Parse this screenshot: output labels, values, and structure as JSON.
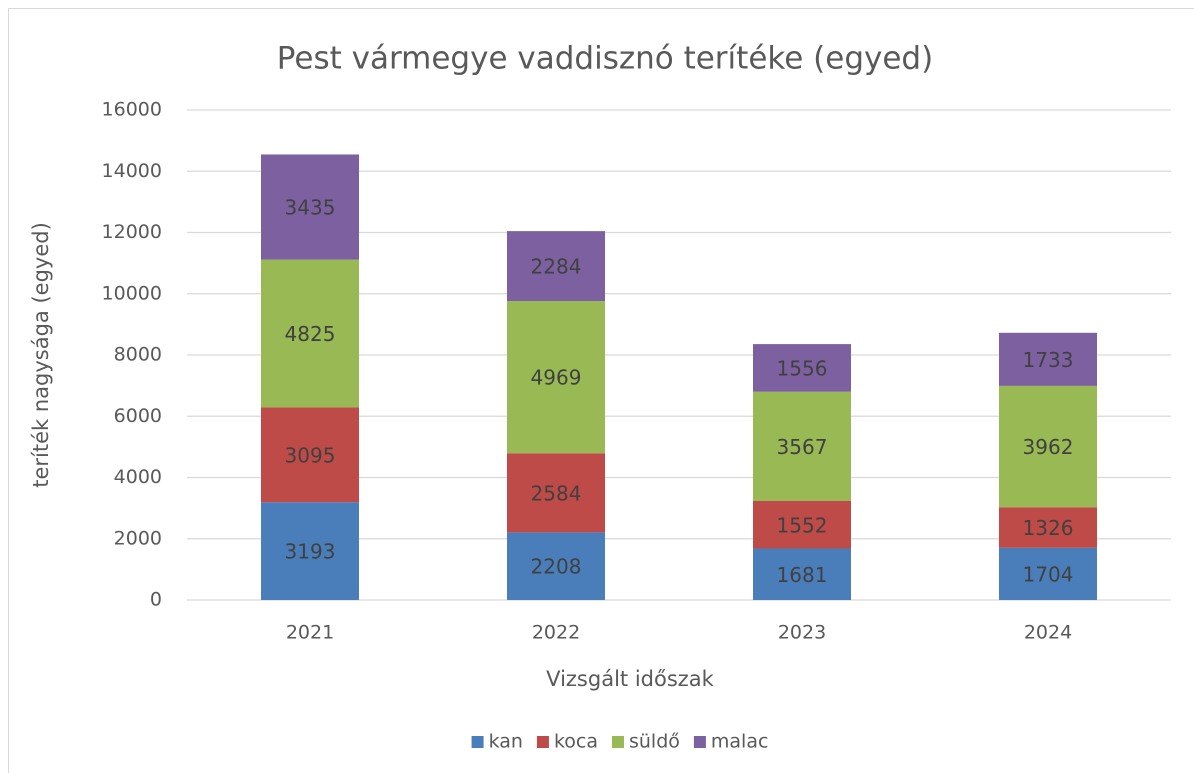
{
  "chart_data": {
    "type": "bar",
    "stacked": true,
    "title": "Pest vármegye vaddisznó terítéke (egyed)",
    "x_label": "Vizsgált időszak",
    "y_label": "teríték nagysága (egyed)",
    "categories": [
      "2021",
      "2022",
      "2023",
      "2024"
    ],
    "series": [
      {
        "name": "kan",
        "color": "#4a7ebb",
        "values": [
          3193,
          2208,
          1681,
          1704
        ]
      },
      {
        "name": "koca",
        "color": "#be4b48",
        "values": [
          3095,
          2584,
          1552,
          1326
        ]
      },
      {
        "name": "süldő",
        "color": "#98b954",
        "values": [
          4825,
          4969,
          3567,
          3962
        ]
      },
      {
        "name": "malac",
        "color": "#7d60a0",
        "values": [
          3435,
          2284,
          1556,
          1733
        ]
      }
    ],
    "ylim": [
      0,
      16000
    ],
    "yticks": [
      0,
      2000,
      4000,
      6000,
      8000,
      10000,
      12000,
      14000,
      16000
    ],
    "grid": true,
    "legend": "bottom"
  }
}
